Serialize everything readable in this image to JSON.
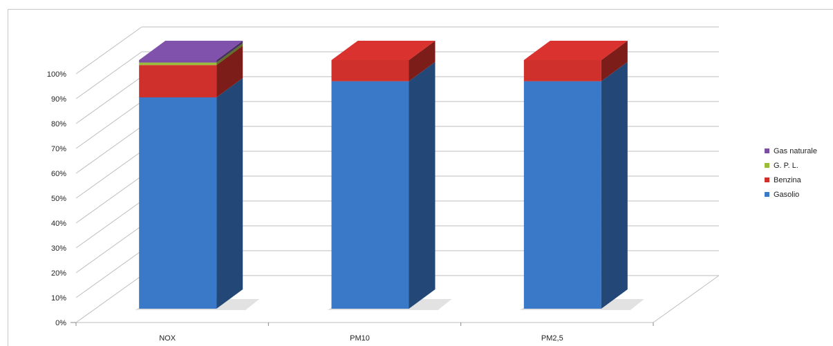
{
  "chart_data": {
    "type": "bar",
    "stacked": true,
    "three_d": true,
    "title": "",
    "xlabel": "",
    "ylabel": "",
    "ylim": [
      0,
      100
    ],
    "y_ticks": [
      "0%",
      "10%",
      "20%",
      "30%",
      "40%",
      "50%",
      "60%",
      "70%",
      "80%",
      "90%",
      "100%"
    ],
    "grid": true,
    "legend_position": "right",
    "categories": [
      "NOX",
      "PM10",
      "PM2,5"
    ],
    "series": [
      {
        "name": "Gasolio",
        "color": "#3a78c8",
        "values": [
          85,
          91.5,
          91.5
        ]
      },
      {
        "name": "Benzina",
        "color": "#d0302c",
        "values": [
          13,
          8.5,
          8.5
        ]
      },
      {
        "name": "G. P. L.",
        "color": "#9bbb3b",
        "values": [
          1,
          0,
          0
        ]
      },
      {
        "name": "Gas naturale",
        "color": "#7b4ea3",
        "values": [
          1,
          0,
          0
        ]
      }
    ],
    "legend_order": [
      "Gas naturale",
      "G. P. L.",
      "Benzina",
      "Gasolio"
    ]
  }
}
